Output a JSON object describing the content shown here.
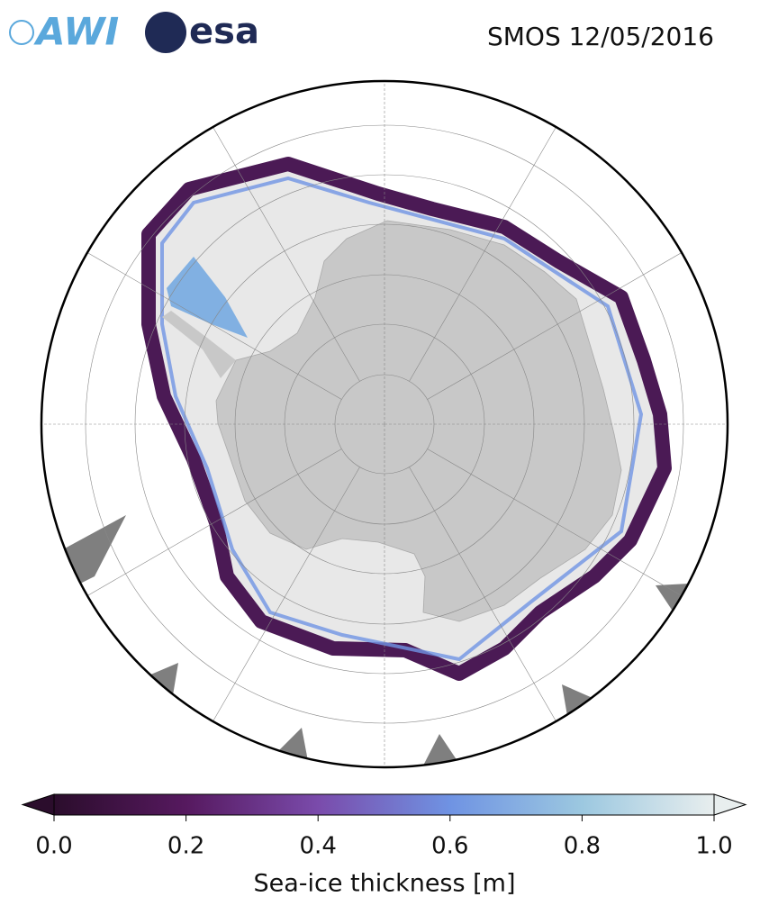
{
  "header": {
    "logos": [
      "AWI",
      "esa"
    ],
    "title": "SMOS 12/05/2016"
  },
  "colorbar": {
    "label": "Sea-ice thickness [m]",
    "range": [
      0,
      1
    ],
    "colors": [
      "#2b0d2c",
      "#56195f",
      "#7a4bab",
      "#6f93e3",
      "#9cc8e0",
      "#e8eeee"
    ],
    "ticks": [
      {
        "value": 0,
        "label": "0.0"
      },
      {
        "value": 0.2,
        "label": "0.2"
      },
      {
        "value": 0.4,
        "label": "0.4"
      },
      {
        "value": 0.6,
        "label": "0.6"
      },
      {
        "value": 0.8,
        "label": "0.8"
      },
      {
        "value": 1,
        "label": "1.0"
      }
    ]
  }
}
